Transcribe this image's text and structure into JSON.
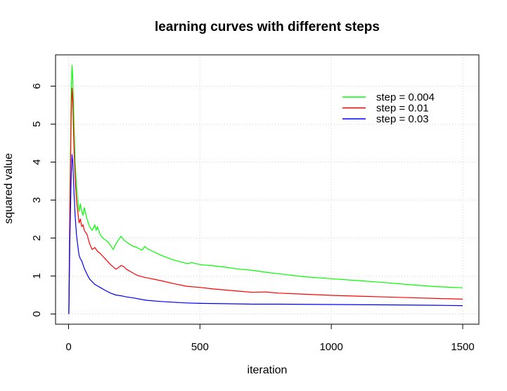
{
  "chart_data": {
    "type": "line",
    "title": "learning curves with different steps",
    "xlabel": "iteration",
    "ylabel": "squared value",
    "xlim": [
      0,
      1500
    ],
    "ylim": [
      0,
      6.6
    ],
    "x_ticks": [
      0,
      500,
      1000,
      1500
    ],
    "y_ticks": [
      0,
      1,
      2,
      3,
      4,
      5,
      6
    ],
    "grid": true,
    "legend_position": "top-right",
    "series": [
      {
        "name": "step = 0.004",
        "color": "#00ff00",
        "x": [
          1,
          5,
          10,
          13,
          16,
          20,
          25,
          30,
          35,
          40,
          45,
          50,
          55,
          60,
          70,
          80,
          90,
          100,
          105,
          110,
          120,
          130,
          140,
          150,
          160,
          170,
          180,
          190,
          200,
          210,
          220,
          230,
          240,
          260,
          280,
          290,
          300,
          320,
          330,
          350,
          400,
          450,
          470,
          500,
          550,
          600,
          650,
          700,
          750,
          800,
          900,
          1000,
          1100,
          1200,
          1300,
          1400,
          1500
        ],
        "y": [
          0.0,
          3.0,
          5.8,
          6.55,
          6.2,
          5.2,
          4.0,
          3.4,
          3.0,
          2.7,
          2.9,
          2.7,
          2.6,
          2.8,
          2.5,
          2.3,
          2.2,
          2.35,
          2.2,
          2.3,
          2.1,
          2.0,
          1.95,
          1.9,
          1.8,
          1.7,
          1.85,
          1.95,
          2.05,
          1.95,
          1.9,
          1.85,
          1.8,
          1.75,
          1.68,
          1.78,
          1.72,
          1.65,
          1.62,
          1.55,
          1.42,
          1.33,
          1.35,
          1.3,
          1.27,
          1.23,
          1.18,
          1.15,
          1.1,
          1.06,
          0.98,
          0.93,
          0.88,
          0.83,
          0.77,
          0.72,
          0.69
        ]
      },
      {
        "name": "step = 0.01",
        "color": "#ff0000",
        "x": [
          1,
          5,
          10,
          13,
          16,
          20,
          25,
          30,
          35,
          40,
          45,
          50,
          55,
          60,
          70,
          80,
          90,
          100,
          110,
          120,
          140,
          160,
          180,
          190,
          200,
          210,
          220,
          240,
          260,
          280,
          300,
          350,
          400,
          450,
          500,
          550,
          600,
          650,
          700,
          750,
          800,
          900,
          1000,
          1100,
          1200,
          1300,
          1400,
          1500
        ],
        "y": [
          0.0,
          2.8,
          5.2,
          5.95,
          5.6,
          4.5,
          3.6,
          3.0,
          2.7,
          2.4,
          2.5,
          2.3,
          2.35,
          2.2,
          2.1,
          1.85,
          1.7,
          1.75,
          1.65,
          1.6,
          1.45,
          1.3,
          1.18,
          1.22,
          1.28,
          1.25,
          1.18,
          1.1,
          1.02,
          0.98,
          0.95,
          0.88,
          0.8,
          0.73,
          0.7,
          0.66,
          0.63,
          0.6,
          0.57,
          0.58,
          0.55,
          0.52,
          0.49,
          0.47,
          0.45,
          0.43,
          0.41,
          0.39
        ]
      },
      {
        "name": "step = 0.03",
        "color": "#0000ff",
        "x": [
          1,
          5,
          10,
          13,
          16,
          20,
          25,
          30,
          35,
          40,
          45,
          50,
          55,
          60,
          70,
          80,
          90,
          100,
          110,
          120,
          140,
          160,
          180,
          200,
          220,
          250,
          280,
          300,
          350,
          400,
          450,
          500,
          600,
          700,
          800,
          1000,
          1200,
          1400,
          1500
        ],
        "y": [
          0.0,
          2.0,
          3.6,
          4.2,
          4.0,
          3.3,
          2.6,
          2.1,
          1.8,
          1.55,
          1.45,
          1.4,
          1.3,
          1.2,
          1.05,
          0.92,
          0.85,
          0.78,
          0.74,
          0.7,
          0.62,
          0.55,
          0.5,
          0.48,
          0.45,
          0.42,
          0.38,
          0.36,
          0.33,
          0.31,
          0.29,
          0.28,
          0.27,
          0.26,
          0.26,
          0.25,
          0.24,
          0.23,
          0.22
        ]
      }
    ]
  }
}
